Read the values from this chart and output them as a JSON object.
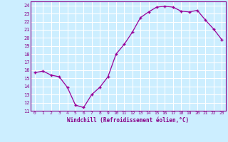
{
  "x": [
    0,
    1,
    2,
    3,
    4,
    5,
    6,
    7,
    8,
    9,
    10,
    11,
    12,
    13,
    14,
    15,
    16,
    17,
    18,
    19,
    20,
    21,
    22,
    23
  ],
  "y": [
    15.7,
    15.9,
    15.4,
    15.2,
    13.9,
    11.7,
    11.4,
    13.0,
    13.9,
    15.2,
    18.0,
    19.2,
    20.7,
    22.5,
    23.2,
    23.8,
    23.9,
    23.8,
    23.3,
    23.2,
    23.4,
    22.2,
    21.1,
    19.8
  ],
  "line_color": "#990099",
  "marker": "+",
  "marker_size": 3,
  "xlim": [
    -0.5,
    23.5
  ],
  "ylim": [
    11,
    24.5
  ],
  "yticks": [
    11,
    12,
    13,
    14,
    15,
    16,
    17,
    18,
    19,
    20,
    21,
    22,
    23,
    24
  ],
  "xticks": [
    0,
    1,
    2,
    3,
    4,
    5,
    6,
    7,
    8,
    9,
    10,
    11,
    12,
    13,
    14,
    15,
    16,
    17,
    18,
    19,
    20,
    21,
    22,
    23
  ],
  "xlabel": "Windchill (Refroidissement éolien,°C)",
  "background_color": "#cceeff",
  "grid_color": "#ffffff",
  "label_color": "#880088",
  "tick_color": "#880088",
  "spine_color": "#880088"
}
